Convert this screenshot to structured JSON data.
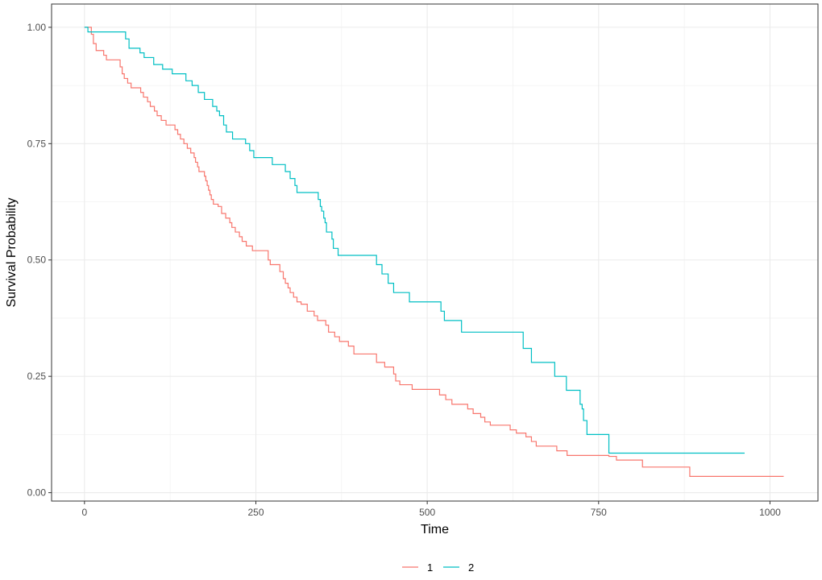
{
  "chart_data": {
    "type": "line",
    "step": true,
    "xlabel": "Time",
    "ylabel": "Survival Probability",
    "xlim": [
      -48,
      1070
    ],
    "ylim": [
      -0.018,
      1.05
    ],
    "x_ticks": [
      0,
      250,
      500,
      750,
      1000
    ],
    "x_tick_labels": [
      "0",
      "250",
      "500",
      "750",
      "1000"
    ],
    "y_ticks": [
      0,
      0.25,
      0.5,
      0.75,
      1.0
    ],
    "y_tick_labels": [
      "0.00",
      "0.25",
      "0.50",
      "0.75",
      "1.00"
    ],
    "grid": true,
    "legend": {
      "position": "bottom"
    },
    "colors": {
      "1": "#F8766D",
      "2": "#00BFC4"
    },
    "series": [
      {
        "name": "1",
        "color": "#F8766D",
        "points": [
          [
            0,
            1.0
          ],
          [
            10,
            0.985
          ],
          [
            13,
            0.965
          ],
          [
            17,
            0.95
          ],
          [
            28,
            0.94
          ],
          [
            32,
            0.93
          ],
          [
            52,
            0.915
          ],
          [
            55,
            0.9
          ],
          [
            58,
            0.89
          ],
          [
            63,
            0.88
          ],
          [
            68,
            0.87
          ],
          [
            82,
            0.86
          ],
          [
            86,
            0.85
          ],
          [
            92,
            0.84
          ],
          [
            96,
            0.83
          ],
          [
            102,
            0.82
          ],
          [
            106,
            0.81
          ],
          [
            112,
            0.8
          ],
          [
            119,
            0.79
          ],
          [
            132,
            0.78
          ],
          [
            136,
            0.77
          ],
          [
            140,
            0.76
          ],
          [
            145,
            0.75
          ],
          [
            150,
            0.74
          ],
          [
            155,
            0.73
          ],
          [
            160,
            0.72
          ],
          [
            162,
            0.71
          ],
          [
            165,
            0.7
          ],
          [
            167,
            0.69
          ],
          [
            175,
            0.68
          ],
          [
            177,
            0.67
          ],
          [
            179,
            0.66
          ],
          [
            181,
            0.65
          ],
          [
            183,
            0.64
          ],
          [
            185,
            0.63
          ],
          [
            188,
            0.62
          ],
          [
            195,
            0.615
          ],
          [
            200,
            0.6
          ],
          [
            206,
            0.59
          ],
          [
            212,
            0.58
          ],
          [
            215,
            0.57
          ],
          [
            220,
            0.56
          ],
          [
            226,
            0.55
          ],
          [
            230,
            0.54
          ],
          [
            236,
            0.53
          ],
          [
            245,
            0.52
          ],
          [
            268,
            0.5
          ],
          [
            271,
            0.49
          ],
          [
            285,
            0.475
          ],
          [
            290,
            0.46
          ],
          [
            293,
            0.45
          ],
          [
            297,
            0.44
          ],
          [
            300,
            0.43
          ],
          [
            305,
            0.42
          ],
          [
            310,
            0.41
          ],
          [
            316,
            0.405
          ],
          [
            325,
            0.39
          ],
          [
            335,
            0.38
          ],
          [
            340,
            0.37
          ],
          [
            352,
            0.36
          ],
          [
            356,
            0.345
          ],
          [
            365,
            0.335
          ],
          [
            372,
            0.325
          ],
          [
            385,
            0.315
          ],
          [
            393,
            0.298
          ],
          [
            426,
            0.28
          ],
          [
            438,
            0.27
          ],
          [
            451,
            0.255
          ],
          [
            454,
            0.24
          ],
          [
            460,
            0.232
          ],
          [
            478,
            0.222
          ],
          [
            518,
            0.21
          ],
          [
            527,
            0.2
          ],
          [
            536,
            0.19
          ],
          [
            559,
            0.18
          ],
          [
            567,
            0.17
          ],
          [
            578,
            0.162
          ],
          [
            584,
            0.152
          ],
          [
            592,
            0.145
          ],
          [
            621,
            0.135
          ],
          [
            630,
            0.128
          ],
          [
            644,
            0.12
          ],
          [
            652,
            0.11
          ],
          [
            659,
            0.1
          ],
          [
            689,
            0.09
          ],
          [
            704,
            0.08
          ],
          [
            765,
            0.078
          ],
          [
            776,
            0.07
          ],
          [
            814,
            0.055
          ],
          [
            883,
            0.035
          ],
          [
            1020,
            0.035
          ]
        ]
      },
      {
        "name": "2",
        "color": "#00BFC4",
        "points": [
          [
            0,
            1.0
          ],
          [
            5,
            0.99
          ],
          [
            60,
            0.975
          ],
          [
            65,
            0.955
          ],
          [
            81,
            0.945
          ],
          [
            87,
            0.935
          ],
          [
            101,
            0.92
          ],
          [
            114,
            0.91
          ],
          [
            128,
            0.9
          ],
          [
            148,
            0.885
          ],
          [
            157,
            0.875
          ],
          [
            166,
            0.86
          ],
          [
            175,
            0.845
          ],
          [
            187,
            0.83
          ],
          [
            193,
            0.82
          ],
          [
            197,
            0.81
          ],
          [
            203,
            0.79
          ],
          [
            207,
            0.775
          ],
          [
            216,
            0.76
          ],
          [
            235,
            0.75
          ],
          [
            241,
            0.735
          ],
          [
            247,
            0.72
          ],
          [
            274,
            0.705
          ],
          [
            293,
            0.69
          ],
          [
            300,
            0.675
          ],
          [
            307,
            0.66
          ],
          [
            310,
            0.645
          ],
          [
            341,
            0.63
          ],
          [
            344,
            0.615
          ],
          [
            346,
            0.605
          ],
          [
            349,
            0.59
          ],
          [
            351,
            0.58
          ],
          [
            353,
            0.56
          ],
          [
            361,
            0.545
          ],
          [
            363,
            0.525
          ],
          [
            370,
            0.51
          ],
          [
            426,
            0.49
          ],
          [
            434,
            0.47
          ],
          [
            443,
            0.45
          ],
          [
            451,
            0.43
          ],
          [
            474,
            0.41
          ],
          [
            520,
            0.39
          ],
          [
            525,
            0.37
          ],
          [
            550,
            0.345
          ],
          [
            640,
            0.31
          ],
          [
            652,
            0.28
          ],
          [
            686,
            0.25
          ],
          [
            703,
            0.22
          ],
          [
            723,
            0.19
          ],
          [
            726,
            0.18
          ],
          [
            728,
            0.155
          ],
          [
            733,
            0.125
          ],
          [
            765,
            0.085
          ],
          [
            963,
            0.085
          ]
        ]
      }
    ]
  }
}
